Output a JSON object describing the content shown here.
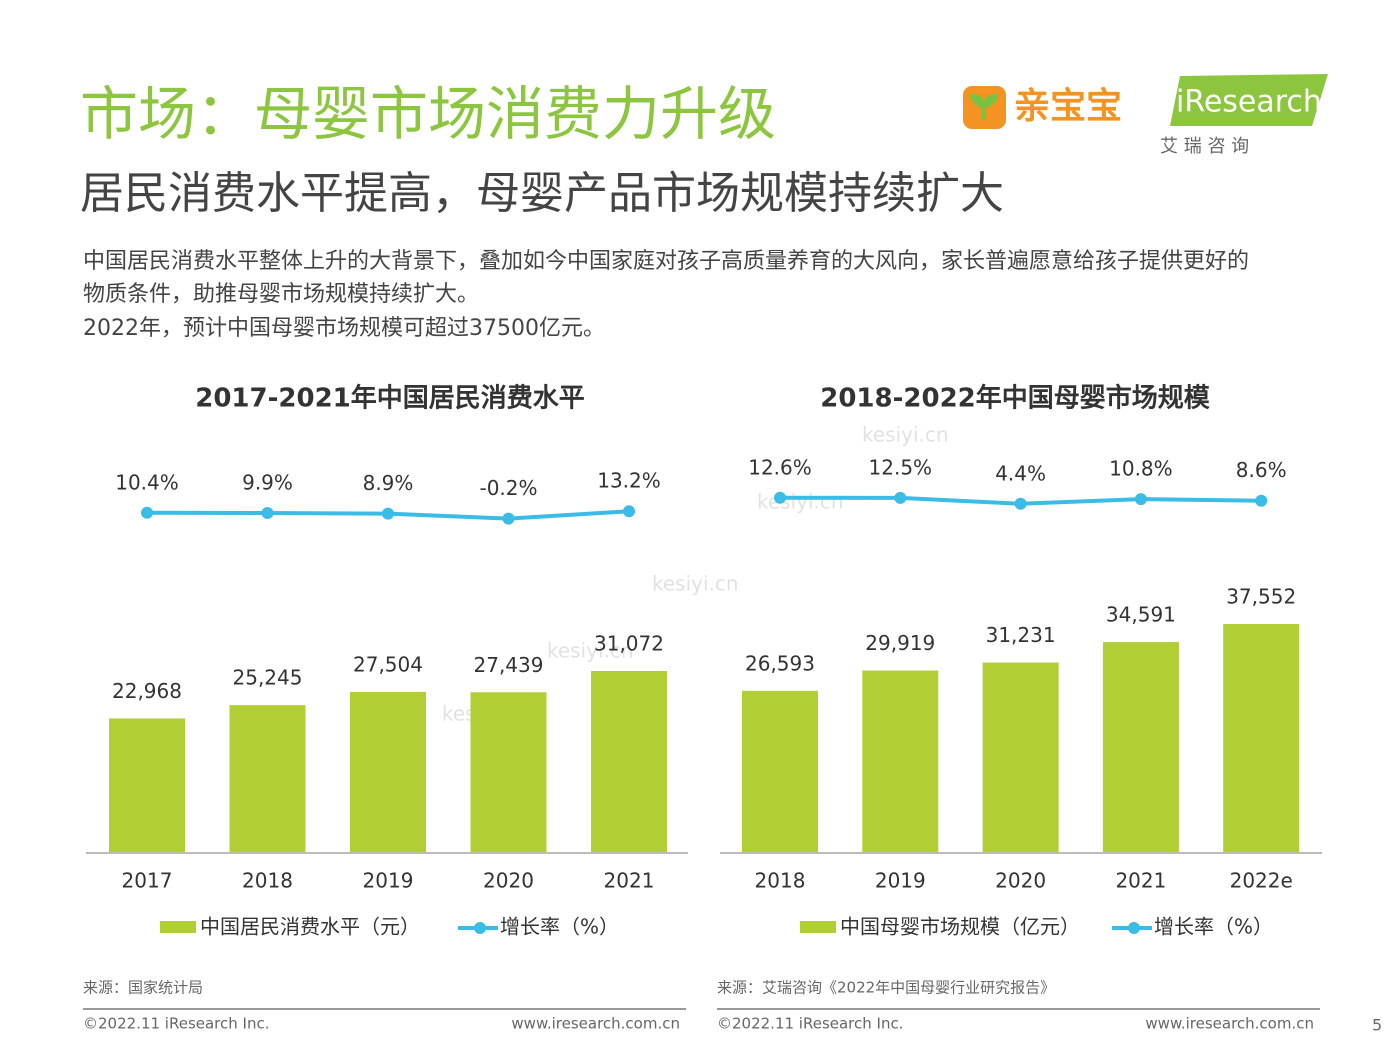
{
  "header": {
    "title": "市场：母婴市场消费力升级",
    "subtitle": "居民消费水平提高，母婴产品市场规模持续扩大",
    "logo_brand": "亲宝宝",
    "logo_research": "iResearch",
    "logo_research_cn": "艾 瑞 咨 询"
  },
  "body": {
    "paragraph": [
      "中国居民消费水平整体上升的大背景下，叠加如今中国家庭对孩子高质量养育的大风向，家长普遍愿意给孩子提供更好的",
      "物质条件，助推母婴市场规模持续扩大。",
      "2022年，预计中国母婴市场规模可超过37500亿元。"
    ]
  },
  "watermark": "kesiyi.cn",
  "chart_data": [
    {
      "type": "combo",
      "title": "2017-2021年中国居民消费水平",
      "categories": [
        "2017",
        "2018",
        "2019",
        "2020",
        "2021"
      ],
      "series": [
        {
          "name": "中国居民消费水平（元）",
          "type": "bar",
          "color": "#b1ce34",
          "values": [
            22968,
            25245,
            27504,
            27439,
            31072
          ],
          "value_labels": [
            "22,968",
            "25,245",
            "27,504",
            "27,439",
            "31,072"
          ]
        },
        {
          "name": "增长率（%）",
          "type": "line",
          "axis": "y2",
          "color": "#3bbce6",
          "values": [
            10.4,
            9.9,
            8.9,
            -0.2,
            13.2
          ],
          "value_labels": [
            "10.4%",
            "9.9%",
            "8.9%",
            "-0.2%",
            "13.2%"
          ]
        }
      ],
      "source": "来源：国家统计局"
    },
    {
      "type": "combo",
      "title": "2018-2022年中国母婴市场规模",
      "categories": [
        "2018",
        "2019",
        "2020",
        "2021",
        "2022e"
      ],
      "series": [
        {
          "name": "中国母婴市场规模（亿元）",
          "type": "bar",
          "color": "#b1ce34",
          "values": [
            26593,
            29919,
            31231,
            34591,
            37552
          ],
          "value_labels": [
            "26,593",
            "29,919",
            "31,231",
            "34,591",
            "37,552"
          ]
        },
        {
          "name": "增长率（%）",
          "type": "line",
          "axis": "y2",
          "color": "#3bbce6",
          "values": [
            12.6,
            12.5,
            4.4,
            10.8,
            8.6
          ],
          "value_labels": [
            "12.6%",
            "12.5%",
            "4.4%",
            "10.8%",
            "8.6%"
          ]
        }
      ],
      "source": "来源：艾瑞咨询《2022年中国母婴行业研究报告》"
    }
  ],
  "footer": {
    "copyright": "©2022.11 iResearch Inc.",
    "website": "www.iresearch.com.cn",
    "page": "5"
  }
}
